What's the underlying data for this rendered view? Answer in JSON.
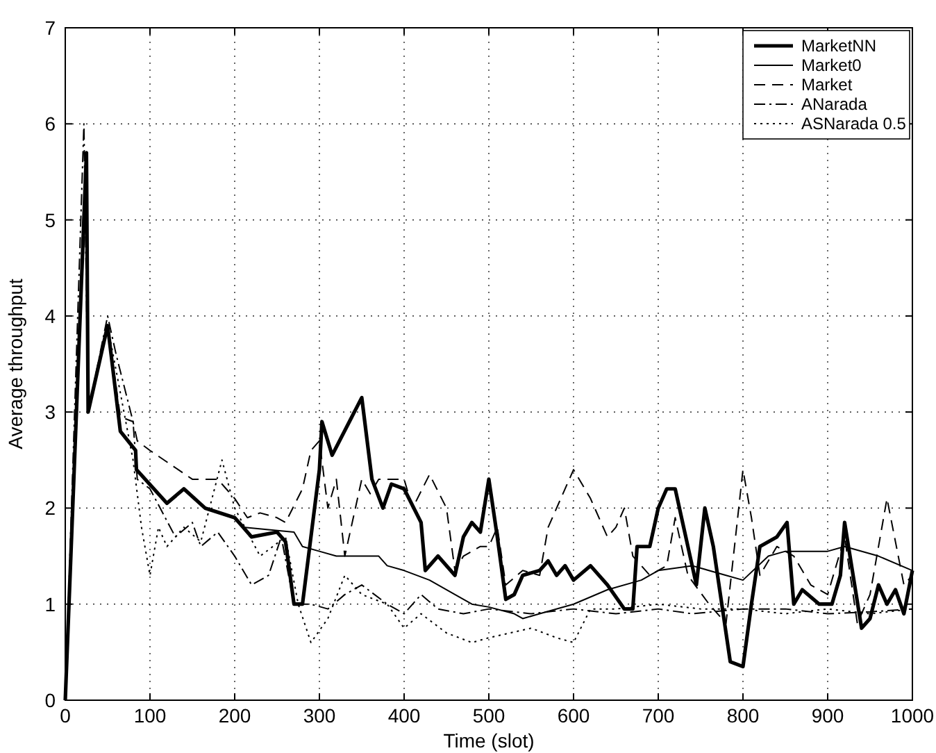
{
  "chart_data": {
    "type": "line",
    "xlabel": "Time (slot)",
    "ylabel": "Average throughput",
    "xlim": [
      0,
      1000
    ],
    "ylim": [
      0,
      7
    ],
    "xticks": [
      0,
      100,
      200,
      300,
      400,
      500,
      600,
      700,
      800,
      900,
      1000
    ],
    "yticks": [
      0,
      1,
      2,
      3,
      4,
      5,
      6,
      7
    ],
    "grid": true,
    "legend": "top right",
    "series": [
      {
        "name": "MarketNN",
        "color": "#000000",
        "line_style": "solid",
        "x": [
          0,
          25,
          27,
          50,
          65,
          83,
          84,
          120,
          140,
          165,
          200,
          210,
          220,
          250,
          260,
          270,
          280,
          300,
          303,
          315,
          350,
          362,
          375,
          385,
          400,
          420,
          425,
          440,
          460,
          470,
          480,
          490,
          500,
          510,
          520,
          530,
          540,
          560,
          570,
          580,
          590,
          600,
          620,
          640,
          660,
          670,
          675,
          690,
          700,
          710,
          720,
          730,
          745,
          755,
          765,
          775,
          785,
          800,
          810,
          820,
          840,
          852,
          860,
          870,
          890,
          905,
          915,
          920,
          930,
          940,
          950,
          960,
          970,
          980,
          990,
          1000
        ],
        "values": [
          0,
          5.7,
          3.0,
          3.9,
          2.8,
          2.6,
          2.4,
          2.05,
          2.2,
          2.0,
          1.9,
          1.8,
          1.7,
          1.75,
          1.65,
          1.0,
          1.0,
          2.4,
          2.9,
          2.55,
          3.15,
          2.3,
          2.0,
          2.25,
          2.2,
          1.85,
          1.35,
          1.5,
          1.3,
          1.7,
          1.85,
          1.75,
          2.3,
          1.7,
          1.05,
          1.1,
          1.3,
          1.35,
          1.45,
          1.3,
          1.4,
          1.25,
          1.4,
          1.2,
          0.95,
          0.95,
          1.6,
          1.6,
          2.0,
          2.2,
          2.2,
          1.8,
          1.2,
          2.0,
          1.6,
          1.0,
          0.4,
          0.35,
          1.0,
          1.6,
          1.7,
          1.85,
          1.0,
          1.15,
          1.0,
          1.0,
          1.3,
          1.85,
          1.3,
          0.75,
          0.85,
          1.2,
          1.0,
          1.15,
          0.9,
          1.35
        ]
      },
      {
        "name": "Market0",
        "color": "#000000",
        "line_style": "solid",
        "x": [
          0,
          25,
          27,
          50,
          65,
          83,
          84,
          120,
          140,
          165,
          200,
          210,
          270,
          280,
          300,
          320,
          370,
          380,
          400,
          430,
          460,
          480,
          500,
          530,
          540,
          560,
          600,
          640,
          680,
          700,
          740,
          780,
          800,
          830,
          850,
          900,
          920,
          960,
          1000
        ],
        "values": [
          0,
          5.7,
          3.0,
          3.9,
          2.8,
          2.6,
          2.4,
          2.05,
          2.2,
          2.0,
          1.9,
          1.8,
          1.75,
          1.6,
          1.55,
          1.5,
          1.5,
          1.4,
          1.35,
          1.25,
          1.1,
          1.0,
          0.97,
          0.9,
          0.85,
          0.9,
          1.0,
          1.15,
          1.25,
          1.35,
          1.4,
          1.3,
          1.25,
          1.5,
          1.55,
          1.55,
          1.6,
          1.5,
          1.35
        ]
      },
      {
        "name": "Market",
        "color": "#000000",
        "line_style": "dashed",
        "x": [
          0,
          25,
          27,
          50,
          65,
          80,
          85,
          100,
          150,
          180,
          200,
          215,
          230,
          250,
          260,
          280,
          290,
          300,
          310,
          320,
          330,
          350,
          360,
          370,
          400,
          410,
          430,
          450,
          460,
          470,
          490,
          500,
          510,
          520,
          540,
          560,
          570,
          600,
          620,
          640,
          650,
          660,
          670,
          690,
          710,
          720,
          735,
          760,
          780,
          800,
          810,
          820,
          840,
          860,
          880,
          900,
          920,
          935,
          950,
          970,
          990,
          1000
        ],
        "values": [
          0,
          5.7,
          3.0,
          3.9,
          2.95,
          2.9,
          2.7,
          2.6,
          2.3,
          2.3,
          2.1,
          1.9,
          1.95,
          1.9,
          1.85,
          2.2,
          2.6,
          2.7,
          2.0,
          2.3,
          1.5,
          2.3,
          2.15,
          2.3,
          2.3,
          2.0,
          2.35,
          2.0,
          1.35,
          1.5,
          1.6,
          1.6,
          1.8,
          1.2,
          1.35,
          1.3,
          1.8,
          2.4,
          2.1,
          1.7,
          1.8,
          2.0,
          1.5,
          1.3,
          1.4,
          1.9,
          1.3,
          1.0,
          0.8,
          2.4,
          1.9,
          1.3,
          1.6,
          1.5,
          1.2,
          1.1,
          1.7,
          0.8,
          1.1,
          2.1,
          1.2,
          1.3
        ]
      },
      {
        "name": "ANarada",
        "color": "#000000",
        "line_style": "dashdot",
        "x": [
          0,
          22,
          27,
          50,
          60,
          80,
          85,
          100,
          130,
          150,
          160,
          180,
          200,
          220,
          240,
          255,
          270,
          290,
          310,
          330,
          350,
          380,
          400,
          420,
          440,
          470,
          500,
          550,
          600,
          650,
          700,
          740,
          800,
          850,
          900,
          950,
          1000
        ],
        "values": [
          0,
          6.0,
          3.0,
          4.0,
          3.6,
          2.9,
          2.3,
          2.2,
          1.7,
          1.85,
          1.6,
          1.75,
          1.5,
          1.2,
          1.3,
          1.7,
          1.0,
          1.0,
          0.95,
          1.1,
          1.2,
          1.0,
          0.9,
          1.1,
          0.95,
          0.9,
          0.95,
          0.9,
          0.95,
          0.9,
          0.95,
          0.9,
          0.95,
          0.95,
          0.9,
          0.92,
          0.95
        ]
      },
      {
        "name": "ASNarada 0.5",
        "color": "#000000",
        "line_style": "dotted",
        "x": [
          0,
          25,
          27,
          50,
          80,
          90,
          100,
          110,
          120,
          140,
          160,
          185,
          200,
          230,
          260,
          275,
          290,
          310,
          330,
          350,
          380,
          400,
          420,
          450,
          480,
          500,
          550,
          580,
          600,
          620,
          650,
          700,
          750,
          800,
          850,
          900,
          950,
          1000
        ],
        "values": [
          0,
          5.7,
          3.0,
          3.9,
          2.5,
          1.8,
          1.3,
          1.8,
          1.6,
          1.8,
          1.65,
          2.5,
          2.0,
          1.5,
          1.7,
          1.0,
          0.6,
          0.85,
          1.3,
          1.1,
          1.0,
          0.75,
          0.9,
          0.7,
          0.6,
          0.65,
          0.75,
          0.65,
          0.6,
          0.95,
          0.95,
          1.0,
          0.95,
          0.95,
          0.9,
          0.95,
          0.9,
          0.95
        ]
      }
    ]
  }
}
